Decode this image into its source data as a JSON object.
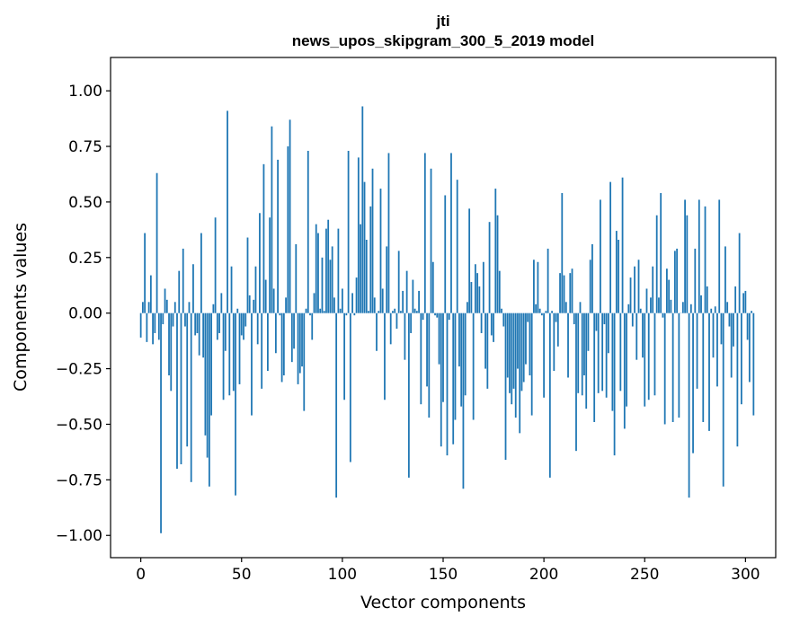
{
  "chart_data": {
    "type": "bar",
    "title": "jti",
    "subtitle": "news_upos_skipgram_300_5_2019 model",
    "xlabel": "Vector components",
    "ylabel": "Components values",
    "xlim": [
      -15,
      315
    ],
    "ylim": [
      -1.1,
      1.15
    ],
    "xticks": [
      0,
      50,
      100,
      150,
      200,
      250,
      300
    ],
    "yticks": [
      -1.0,
      -0.75,
      -0.5,
      -0.25,
      0.0,
      0.25,
      0.5,
      0.75,
      1.0
    ],
    "ytick_labels": [
      "−1.00",
      "−0.75",
      "−0.50",
      "−0.25",
      "0.00",
      "0.25",
      "0.50",
      "0.75",
      "1.00"
    ],
    "bar_color": "#1f77b4",
    "values": [
      -0.11,
      0.05,
      0.36,
      -0.13,
      0.05,
      0.17,
      -0.14,
      -0.09,
      0.63,
      -0.12,
      -0.99,
      -0.05,
      0.11,
      0.06,
      -0.28,
      -0.35,
      -0.06,
      0.05,
      -0.7,
      0.19,
      -0.68,
      0.29,
      -0.06,
      -0.6,
      0.05,
      -0.76,
      0.22,
      -0.1,
      -0.09,
      -0.19,
      0.36,
      -0.2,
      -0.55,
      -0.65,
      -0.78,
      -0.46,
      0.04,
      0.43,
      -0.12,
      -0.09,
      0.09,
      -0.39,
      -0.17,
      0.91,
      -0.37,
      0.21,
      -0.35,
      -0.82,
      0.02,
      -0.32,
      -0.1,
      -0.12,
      -0.06,
      0.34,
      0.08,
      -0.46,
      0.06,
      0.21,
      -0.14,
      0.45,
      -0.34,
      0.67,
      0.15,
      -0.26,
      0.43,
      0.84,
      0.11,
      -0.18,
      0.69,
      -0.01,
      -0.31,
      -0.28,
      0.07,
      0.75,
      0.87,
      -0.22,
      -0.16,
      0.31,
      -0.32,
      -0.27,
      -0.24,
      -0.44,
      0.02,
      0.73,
      -0.01,
      -0.12,
      0.09,
      0.4,
      0.36,
      0.02,
      0.25,
      0.01,
      0.38,
      0.42,
      0.24,
      0.3,
      0.07,
      -0.83,
      0.38,
      0.02,
      0.11,
      -0.39,
      -0.01,
      0.73,
      -0.67,
      0.09,
      -0.01,
      0.16,
      0.7,
      0.4,
      0.93,
      0.59,
      0.33,
      0.01,
      0.48,
      0.65,
      0.07,
      -0.17,
      0.01,
      0.56,
      0.11,
      -0.39,
      0.3,
      0.72,
      -0.14,
      0.01,
      0.02,
      -0.07,
      0.28,
      0.01,
      0.1,
      -0.21,
      0.19,
      -0.74,
      -0.09,
      0.15,
      0.02,
      0.01,
      0.1,
      -0.41,
      -0.03,
      0.72,
      -0.33,
      -0.47,
      0.65,
      0.23,
      -0.01,
      -0.02,
      -0.23,
      -0.6,
      -0.4,
      0.53,
      -0.64,
      -0.03,
      0.72,
      -0.59,
      -0.48,
      0.6,
      -0.24,
      -0.42,
      -0.79,
      -0.37,
      0.05,
      0.47,
      0.14,
      -0.48,
      0.22,
      0.18,
      0.12,
      -0.09,
      0.23,
      -0.25,
      -0.34,
      0.41,
      -0.1,
      -0.13,
      0.56,
      0.44,
      0.19,
      0.02,
      -0.06,
      -0.66,
      -0.29,
      -0.36,
      -0.41,
      -0.34,
      -0.47,
      -0.25,
      -0.54,
      -0.35,
      -0.31,
      -0.23,
      -0.04,
      -0.28,
      -0.46,
      0.24,
      0.04,
      0.23,
      0.02,
      -0.01,
      -0.38,
      0.01,
      0.29,
      -0.74,
      0.01,
      -0.26,
      -0.04,
      -0.15,
      0.18,
      0.54,
      0.17,
      0.05,
      -0.29,
      0.18,
      0.2,
      -0.05,
      -0.62,
      -0.36,
      0.05,
      -0.37,
      -0.28,
      -0.43,
      -0.17,
      0.24,
      0.31,
      -0.49,
      -0.08,
      -0.36,
      0.51,
      -0.35,
      -0.05,
      -0.38,
      -0.18,
      0.59,
      -0.44,
      -0.64,
      0.37,
      0.33,
      -0.35,
      0.61,
      -0.52,
      -0.42,
      0.04,
      0.16,
      -0.06,
      0.21,
      -0.21,
      0.24,
      0.02,
      -0.2,
      -0.42,
      0.11,
      -0.39,
      0.07,
      0.21,
      -0.37,
      0.44,
      0.07,
      0.54,
      -0.02,
      -0.5,
      0.2,
      0.15,
      0.06,
      -0.49,
      0.28,
      0.29,
      -0.47,
      0.0,
      0.05,
      0.51,
      0.44,
      -0.83,
      0.04,
      -0.63,
      0.29,
      -0.34,
      0.51,
      0.08,
      -0.49,
      0.48,
      0.12,
      -0.53,
      0.02,
      -0.2,
      0.03,
      -0.33,
      0.51,
      -0.14,
      -0.78,
      0.3,
      0.05,
      -0.06,
      -0.29,
      -0.15,
      0.12,
      -0.6,
      0.36,
      -0.41,
      0.09,
      0.1,
      -0.12,
      -0.31,
      0.01,
      -0.46
    ]
  }
}
